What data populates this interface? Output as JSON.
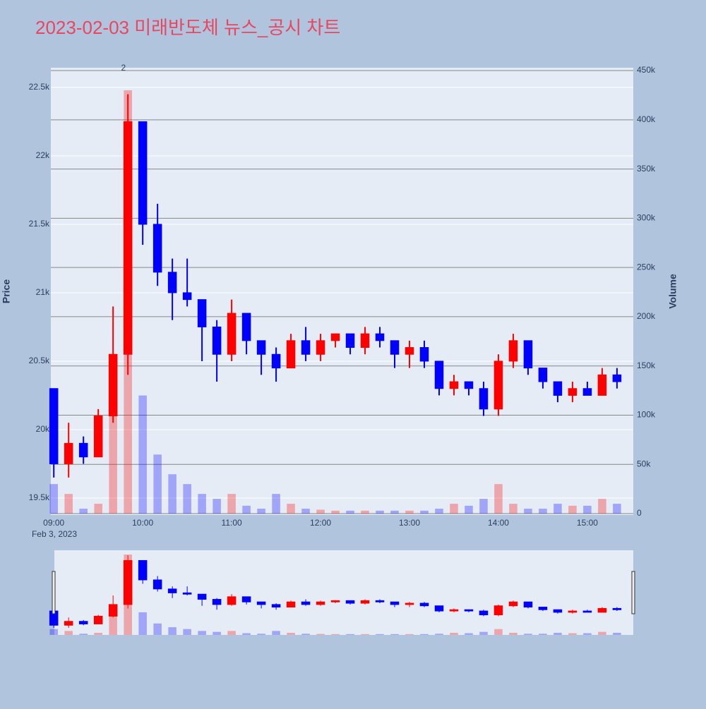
{
  "chart_data": {
    "type": "candlestick",
    "title": "2023-02-03 미래반도체 뉴스_공시 차트",
    "y_title": "Price",
    "y2_title": "Volume",
    "x_date_label": "Feb 3, 2023",
    "annotation": {
      "x": "09:47",
      "text": "2"
    },
    "increasing_color": "#ff0000",
    "decreasing_color": "#0000ff",
    "x": [
      "09:00",
      "09:10",
      "09:20",
      "09:30",
      "09:40",
      "09:50",
      "10:00",
      "10:10",
      "10:20",
      "10:30",
      "10:40",
      "10:50",
      "11:00",
      "11:10",
      "11:20",
      "11:30",
      "11:40",
      "11:50",
      "12:00",
      "12:10",
      "12:20",
      "12:30",
      "12:40",
      "12:50",
      "13:00",
      "13:10",
      "13:20",
      "13:30",
      "13:40",
      "13:50",
      "14:00",
      "14:10",
      "14:20",
      "14:30",
      "14:40",
      "14:50",
      "15:00",
      "15:10",
      "15:20"
    ],
    "open": [
      20300,
      19750,
      19900,
      19800,
      20100,
      20550,
      22250,
      21500,
      21150,
      21000,
      20950,
      20750,
      20550,
      20850,
      20650,
      20550,
      20450,
      20650,
      20550,
      20650,
      20700,
      20600,
      20700,
      20650,
      20550,
      20600,
      20500,
      20300,
      20350,
      20300,
      20150,
      20500,
      20650,
      20450,
      20350,
      20250,
      20300,
      20250,
      20400
    ],
    "high": [
      20300,
      20050,
      19950,
      20150,
      20900,
      22450,
      22250,
      21650,
      21250,
      21250,
      20950,
      20800,
      20950,
      20850,
      20650,
      20600,
      20700,
      20750,
      20700,
      20700,
      20700,
      20750,
      20750,
      20650,
      20650,
      20650,
      20500,
      20400,
      20350,
      20350,
      20550,
      20700,
      20650,
      20450,
      20350,
      20350,
      20350,
      20450,
      20450
    ],
    "low": [
      19650,
      19650,
      19750,
      19800,
      20050,
      20400,
      21350,
      21050,
      20800,
      20900,
      20500,
      20350,
      20500,
      20550,
      20400,
      20350,
      20450,
      20500,
      20500,
      20600,
      20550,
      20550,
      20600,
      20450,
      20450,
      20450,
      20250,
      20250,
      20250,
      20100,
      20100,
      20450,
      20400,
      20300,
      20200,
      20200,
      20250,
      20250,
      20300
    ],
    "close": [
      19750,
      19900,
      19800,
      20100,
      20550,
      22250,
      21500,
      21150,
      21000,
      20950,
      20750,
      20550,
      20850,
      20650,
      20550,
      20450,
      20650,
      20550,
      20650,
      20700,
      20600,
      20700,
      20650,
      20550,
      20600,
      20500,
      20300,
      20350,
      20300,
      20150,
      20500,
      20650,
      20450,
      20350,
      20250,
      20300,
      20250,
      20400,
      20350
    ],
    "volume": [
      30000,
      20000,
      5000,
      10000,
      100000,
      430000,
      120000,
      60000,
      40000,
      30000,
      20000,
      15000,
      20000,
      8000,
      5000,
      20000,
      10000,
      5000,
      4000,
      3000,
      3000,
      3000,
      3000,
      3000,
      3000,
      3000,
      5000,
      10000,
      8000,
      15000,
      30000,
      10000,
      5000,
      5000,
      10000,
      8000,
      8000,
      15000,
      10000
    ],
    "xlim": [
      "08:58",
      "15:31"
    ],
    "xticks": [
      "09:00",
      "10:00",
      "11:00",
      "12:00",
      "13:00",
      "14:00",
      "15:00"
    ],
    "ylim": [
      19376,
      22644
    ],
    "yticks": [
      {
        "value": 19500,
        "label": "19.5k"
      },
      {
        "value": 20000,
        "label": "20k"
      },
      {
        "value": 20500,
        "label": "20.5k"
      },
      {
        "value": 21000,
        "label": "21k"
      },
      {
        "value": 21500,
        "label": "21.5k"
      },
      {
        "value": 22000,
        "label": "22k"
      },
      {
        "value": 22500,
        "label": "22.5k"
      }
    ],
    "y2lim": [
      -1400,
      452900
    ],
    "y2ticks": [
      0,
      {
        "value": 50000,
        "label": "50k"
      },
      {
        "value": 100000,
        "label": "100k"
      },
      {
        "value": 150000,
        "label": "150k"
      },
      {
        "value": 200000,
        "label": "200k"
      },
      {
        "value": 250000,
        "label": "250k"
      },
      {
        "value": 300000,
        "label": "300k"
      },
      {
        "value": 350000,
        "label": "350k"
      },
      {
        "value": 400000,
        "label": "400k"
      },
      {
        "value": 450000,
        "label": "450k"
      }
    ],
    "grid": true,
    "rangeslider": true
  }
}
